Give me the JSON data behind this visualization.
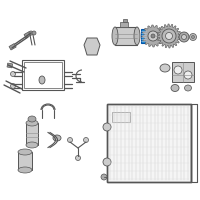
{
  "background_color": "#ffffff",
  "fig_width": 2.0,
  "fig_height": 2.0,
  "dpi": 100,
  "lc": "#555555",
  "lc2": "#888888",
  "highlight": "#2288cc"
}
